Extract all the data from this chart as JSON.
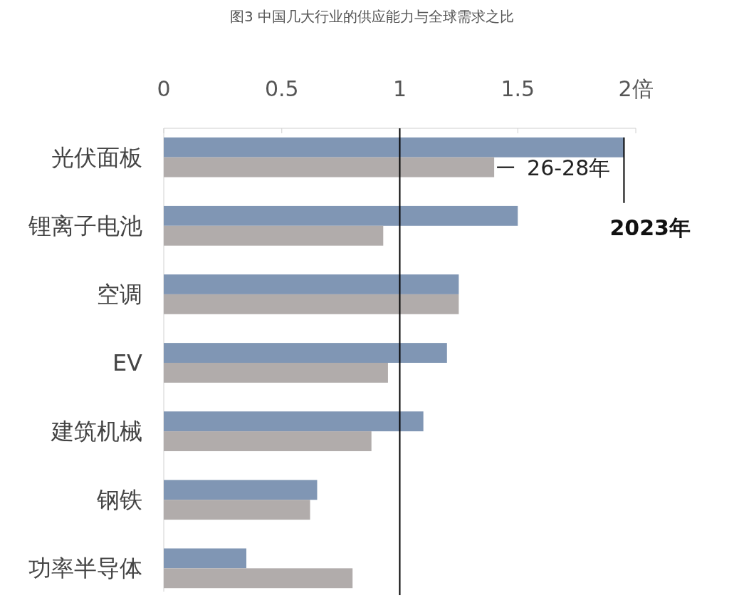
{
  "chart_data": {
    "type": "bar",
    "orientation": "horizontal",
    "title": "图3  中国几大行业的供应能力与全球需求之比",
    "categories": [
      "光伏面板",
      "锂离子电池",
      "空调",
      "EV",
      "建筑机械",
      "钢铁",
      "功率半导体"
    ],
    "series": [
      {
        "name": "2023年",
        "color": "#8096b4",
        "values": [
          1.95,
          1.5,
          1.25,
          1.2,
          1.1,
          0.65,
          0.35
        ]
      },
      {
        "name": "26-28年",
        "color": "#b1acab",
        "values": [
          1.4,
          0.93,
          1.25,
          0.95,
          0.88,
          0.62,
          0.8
        ]
      }
    ],
    "xlim": [
      0,
      2
    ],
    "xticks": [
      0,
      0.5,
      1,
      1.5,
      {
        "value": 2,
        "label": "2倍"
      }
    ],
    "ref_lines": [
      {
        "axis": "x",
        "value": 1,
        "color": "#000000"
      }
    ]
  }
}
